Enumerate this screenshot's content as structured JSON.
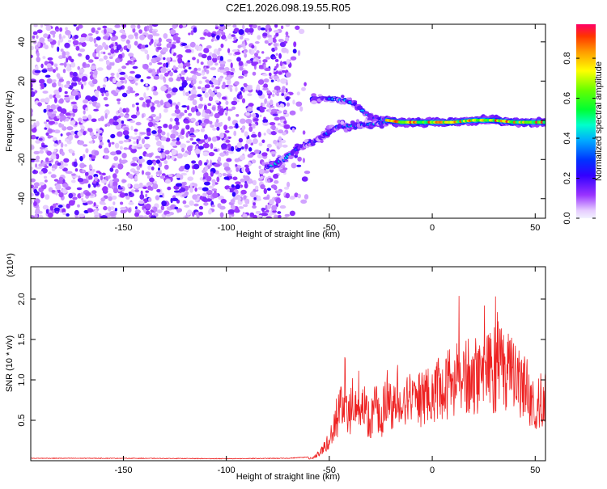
{
  "title": "C2E1.2026.098.19.55.R05",
  "chart_data": [
    {
      "type": "heatmap",
      "xlabel": "Height of straight line (km)",
      "ylabel": "Frequency (Hz)",
      "xlim": [
        -195,
        55
      ],
      "ylim": [
        -50,
        49
      ],
      "xticks": [
        -150,
        -100,
        -50,
        0,
        50
      ],
      "yticks": [
        -40,
        -20,
        0,
        20,
        40
      ],
      "colorbar": {
        "label": "Normalized spectral amplitude",
        "range": [
          0,
          0.97
        ],
        "ticks": [
          0.0,
          0.2,
          0.4,
          0.6,
          0.8
        ],
        "tick_labels": [
          "0.0",
          "0.2",
          "0.4",
          "0.6",
          "0.8"
        ]
      },
      "features": [
        {
          "name": "noise",
          "x": [
            -195,
            -70
          ],
          "y": [
            -50,
            49
          ],
          "amplitude": 0.2
        },
        {
          "name": "upper-branch",
          "points": [
            [
              -58,
              11
            ],
            [
              -50,
              11
            ],
            [
              -42,
              10
            ],
            [
              -37,
              8
            ],
            [
              -33,
              4
            ],
            [
              -28,
              1
            ],
            [
              -22,
              0
            ]
          ],
          "amplitude": 0.45
        },
        {
          "name": "lower-branch",
          "points": [
            [
              -80,
              -24
            ],
            [
              -72,
              -20
            ],
            [
              -65,
              -14
            ],
            [
              -58,
              -11
            ],
            [
              -50,
              -6
            ],
            [
              -45,
              -3
            ],
            [
              -38,
              -3
            ],
            [
              -30,
              -2
            ],
            [
              -22,
              -1
            ]
          ],
          "amplitude": 0.5
        },
        {
          "name": "main-line",
          "points": [
            [
              -22,
              0
            ],
            [
              -15,
              -1
            ],
            [
              -8,
              -1
            ],
            [
              0,
              -1
            ],
            [
              10,
              -1
            ],
            [
              20,
              0
            ],
            [
              30,
              0
            ],
            [
              40,
              -1
            ],
            [
              50,
              -1
            ],
            [
              55,
              -1
            ]
          ],
          "amplitude": 0.95
        }
      ]
    },
    {
      "type": "line",
      "xlabel": "Height of straight line (km)",
      "ylabel": "SNR (10 * v/v)",
      "y_multiplier": "(x10⁴)",
      "xlim": [
        -195,
        55
      ],
      "ylim": [
        0,
        24000
      ],
      "xticks": [
        -150,
        -100,
        -50,
        0,
        50
      ],
      "yticks": [
        5000,
        10000,
        15000,
        20000
      ],
      "ytick_labels": [
        "0.5",
        "1.0",
        "1.5",
        "2.0"
      ],
      "series": [
        {
          "color": "#ee2222",
          "x": [
            -195,
            -150,
            -100,
            -70,
            -58,
            -55,
            -52,
            -50,
            -48,
            -45,
            -43,
            -40,
            -38,
            -35,
            -33,
            -30,
            -28,
            -25,
            -22,
            -20,
            -17,
            -15,
            -12,
            -10,
            -8,
            -5,
            -2,
            0,
            3,
            5,
            8,
            10,
            13,
            15,
            18,
            20,
            23,
            25,
            28,
            30,
            32,
            33,
            35,
            38,
            40,
            43,
            45,
            48,
            50,
            52,
            55
          ],
          "values": [
            300,
            300,
            250,
            300,
            500,
            1300,
            2800,
            3400,
            5600,
            8800,
            11000,
            8500,
            11200,
            7600,
            9800,
            6500,
            10200,
            7100,
            12100,
            9600,
            9800,
            7900,
            10600,
            10000,
            10800,
            11200,
            12100,
            10900,
            13200,
            12200,
            14100,
            13000,
            15600,
            14800,
            15200,
            14300,
            15900,
            14700,
            16200,
            15300,
            17500,
            17100,
            16000,
            15900,
            17000,
            12800,
            14300,
            9400,
            10700,
            9300,
            10900
          ]
        }
      ]
    }
  ]
}
